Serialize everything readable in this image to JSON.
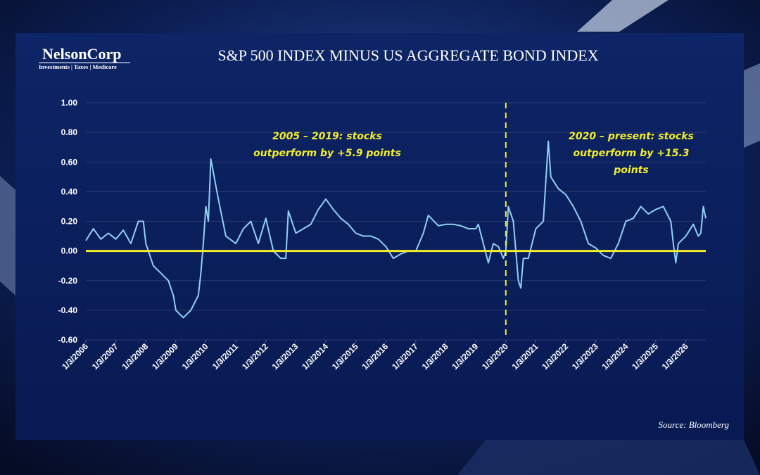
{
  "brand": {
    "name": "NelsonCorp",
    "tagline": "Investments | Taxes | Medicare"
  },
  "source": "Source: Bloomberg",
  "chart_data": {
    "type": "line",
    "title": "S&P 500 INDEX MINUS US AGGREGATE BOND INDEX",
    "annotations": [
      {
        "lines": [
          "2005 – 2019: stocks",
          "outperform by +5.9 points"
        ]
      },
      {
        "lines": [
          "2020 – present: stocks",
          "outperform by +15.3",
          "points"
        ]
      }
    ],
    "x": [
      "2006-01",
      "2006-04",
      "2006-07",
      "2006-10",
      "2007-01",
      "2007-04",
      "2007-07",
      "2007-10",
      "2007-12",
      "2008-01",
      "2008-04",
      "2008-07",
      "2008-10",
      "2008-12",
      "2009-01",
      "2009-04",
      "2009-07",
      "2009-10",
      "2009-11",
      "2009-12",
      "2010-01",
      "2010-02",
      "2010-03",
      "2010-06",
      "2010-09",
      "2011-01",
      "2011-04",
      "2011-07",
      "2011-10",
      "2012-01",
      "2012-04",
      "2012-07",
      "2012-09",
      "2012-10",
      "2013-01",
      "2013-04",
      "2013-07",
      "2013-10",
      "2014-01",
      "2014-04",
      "2014-07",
      "2014-10",
      "2015-01",
      "2015-04",
      "2015-07",
      "2015-10",
      "2016-01",
      "2016-04",
      "2016-07",
      "2016-10",
      "2017-01",
      "2017-04",
      "2017-06",
      "2017-10",
      "2018-01",
      "2018-04",
      "2018-07",
      "2018-10",
      "2019-01",
      "2019-02",
      "2019-04",
      "2019-06",
      "2019-08",
      "2019-10",
      "2019-12",
      "2020-01",
      "2020-02",
      "2020-04",
      "2020-06",
      "2020-07",
      "2020-08",
      "2020-10",
      "2021-01",
      "2021-04",
      "2021-06",
      "2021-07",
      "2021-10",
      "2022-01",
      "2022-04",
      "2022-07",
      "2022-10",
      "2023-01",
      "2023-04",
      "2023-07",
      "2023-10",
      "2023-12",
      "2024-01",
      "2024-04",
      "2024-07",
      "2024-10",
      "2025-01",
      "2025-04",
      "2025-07",
      "2025-08",
      "2025-09",
      "2025-10",
      "2026-01",
      "2026-04",
      "2026-06",
      "2026-07",
      "2026-08",
      "2026-09"
    ],
    "series": [
      {
        "color": "#8fd0f2",
        "values": [
          0.07,
          0.15,
          0.08,
          0.12,
          0.08,
          0.14,
          0.05,
          0.2,
          0.2,
          0.05,
          -0.1,
          -0.15,
          -0.2,
          -0.3,
          -0.4,
          -0.45,
          -0.4,
          -0.3,
          -0.15,
          0.05,
          0.3,
          0.2,
          0.62,
          0.35,
          0.1,
          0.05,
          0.15,
          0.2,
          0.05,
          0.22,
          0.0,
          -0.05,
          -0.05,
          0.27,
          0.12,
          0.15,
          0.18,
          0.28,
          0.35,
          0.28,
          0.22,
          0.18,
          0.12,
          0.1,
          0.1,
          0.08,
          0.03,
          -0.05,
          -0.02,
          0.0,
          0.0,
          0.12,
          0.24,
          0.17,
          0.18,
          0.18,
          0.17,
          0.15,
          0.15,
          0.18,
          0.05,
          -0.08,
          0.05,
          0.03,
          -0.05,
          0.0,
          0.3,
          0.2,
          -0.2,
          -0.25,
          -0.05,
          -0.05,
          0.15,
          0.2,
          0.74,
          0.5,
          0.42,
          0.38,
          0.3,
          0.2,
          0.05,
          0.02,
          -0.03,
          -0.05,
          0.05,
          0.15,
          0.2,
          0.22,
          0.3,
          0.25,
          0.28,
          0.3,
          0.2,
          0.05,
          -0.08,
          0.05,
          0.1,
          0.18,
          0.1,
          0.12,
          0.3,
          0.22
        ]
      }
    ],
    "xlim": [
      "2006-01",
      "2026-09"
    ],
    "xticks": [
      {
        "value": "2006-01",
        "label": "1/3/2006"
      },
      {
        "value": "2007-01",
        "label": "1/3/2007"
      },
      {
        "value": "2008-01",
        "label": "1/3/2008"
      },
      {
        "value": "2009-01",
        "label": "1/3/2009"
      },
      {
        "value": "2010-01",
        "label": "1/3/2010"
      },
      {
        "value": "2011-01",
        "label": "1/3/2011"
      },
      {
        "value": "2012-01",
        "label": "1/3/2012"
      },
      {
        "value": "2013-01",
        "label": "1/3/2013"
      },
      {
        "value": "2014-01",
        "label": "1/3/2014"
      },
      {
        "value": "2015-01",
        "label": "1/3/2015"
      },
      {
        "value": "2016-01",
        "label": "1/3/2016"
      },
      {
        "value": "2017-01",
        "label": "1/3/2017"
      },
      {
        "value": "2018-01",
        "label": "1/3/2018"
      },
      {
        "value": "2019-01",
        "label": "1/3/2019"
      },
      {
        "value": "2020-01",
        "label": "1/3/2020"
      },
      {
        "value": "2021-01",
        "label": "1/3/2021"
      },
      {
        "value": "2022-01",
        "label": "1/3/2022"
      },
      {
        "value": "2023-01",
        "label": "1/3/2023"
      },
      {
        "value": "2024-01",
        "label": "1/3/2024"
      },
      {
        "value": "2025-01",
        "label": "1/3/2025"
      },
      {
        "value": "2026-01",
        "label": "1/3/2026"
      }
    ],
    "ylim": [
      -0.6,
      1.0
    ],
    "yticks": [
      {
        "value": 1,
        "label": "1.00"
      },
      {
        "value": 0.8,
        "label": "0.80"
      },
      {
        "value": 0.6,
        "label": "0.60"
      },
      {
        "value": 0.4,
        "label": "0.40"
      },
      {
        "value": 0.2,
        "label": "0.20"
      },
      {
        "value": 0,
        "label": "0.00"
      },
      {
        "value": -0.2,
        "label": "-0.20"
      },
      {
        "value": -0.4,
        "label": "-0.40"
      },
      {
        "value": -0.6,
        "label": "-0.60"
      }
    ],
    "grid": true,
    "reference_line": {
      "y": 0,
      "color": "#f2ee2a"
    },
    "divider": {
      "x": "2020-01",
      "color": "#f2ee2a"
    }
  }
}
